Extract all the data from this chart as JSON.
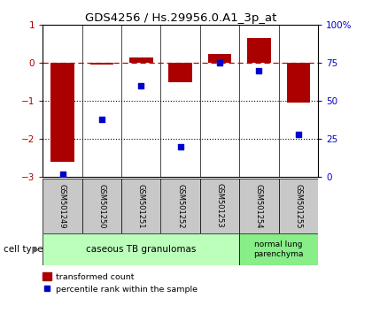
{
  "title": "GDS4256 / Hs.29956.0.A1_3p_at",
  "categories": [
    "GSM501249",
    "GSM501250",
    "GSM501251",
    "GSM501252",
    "GSM501253",
    "GSM501254",
    "GSM501255"
  ],
  "red_bars": [
    -2.6,
    -0.05,
    0.15,
    -0.5,
    0.25,
    0.65,
    -1.05
  ],
  "blue_dots": [
    2,
    38,
    60,
    20,
    75,
    70,
    28
  ],
  "ylim_left": [
    -3,
    1
  ],
  "ylim_right": [
    0,
    100
  ],
  "yticks_left": [
    1,
    0,
    -1,
    -2,
    -3
  ],
  "yticks_right": [
    100,
    75,
    50,
    25,
    0
  ],
  "red_color": "#AA0000",
  "blue_color": "#0000CC",
  "dashed_line_color": "#CC0000",
  "dotted_line_color": "#000000",
  "group1_label": "caseous TB granulomas",
  "group1_color": "#BBFFBB",
  "group1_indices": [
    0,
    1,
    2,
    3,
    4
  ],
  "group2_label": "normal lung\nparenchyma",
  "group2_color": "#88EE88",
  "group2_indices": [
    5,
    6
  ],
  "cell_type_label": "cell type",
  "legend_red": "transformed count",
  "legend_blue": "percentile rank within the sample",
  "bar_width": 0.6
}
